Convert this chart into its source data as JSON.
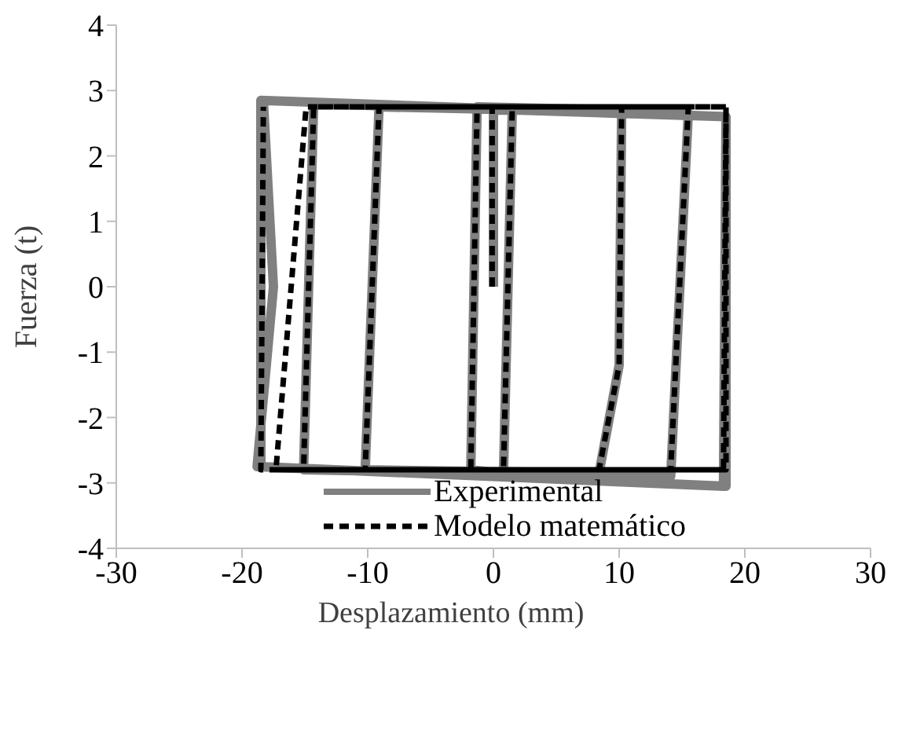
{
  "chart_data": {
    "type": "line",
    "xlabel": "Desplazamiento (mm)",
    "ylabel": "Fuerza (t)",
    "xlim": [
      -30,
      30
    ],
    "xticks": [
      -30,
      -20,
      -10,
      0,
      10,
      20,
      30
    ],
    "ylim": [
      -4,
      4
    ],
    "yticks": [
      -4,
      -3,
      -2,
      -1,
      0,
      1,
      2,
      3,
      4
    ],
    "grid": false,
    "legend": "bottom",
    "marker": "none",
    "series": [
      {
        "name": "Experimental",
        "color": "#808080",
        "line_style": "solid",
        "x": [
          0,
          0,
          1.5,
          0.8,
          -1.8,
          -1.3,
          10.2,
          10,
          8.4,
          -10.2,
          -9.1,
          15.5,
          14.1,
          -15.1,
          -14.3,
          18.5,
          18.5,
          -18.5,
          -18.5,
          18.5,
          18.3,
          -18.8,
          -17.5,
          -18.3
        ],
        "values": [
          0,
          2.7,
          2.7,
          -2.85,
          -2.8,
          2.75,
          2.7,
          -1.2,
          -2.85,
          -2.8,
          2.75,
          2.65,
          -2.9,
          -2.8,
          2.8,
          2.6,
          -3.05,
          -2.75,
          2.85,
          2.6,
          -3.05,
          -2.75,
          0,
          2.85
        ]
      },
      {
        "name": "Modelo matemático",
        "color": "#000000",
        "line_style": "dashed",
        "x": [
          -0.1,
          -0.1,
          1.5,
          0.8,
          -1.8,
          -1.3,
          10.2,
          10,
          8.4,
          -10.2,
          -9.1,
          15.5,
          14.1,
          -15.1,
          -14.3,
          18.5,
          18.5,
          -17.3,
          -14.9,
          18.5,
          18.3,
          -18.5,
          -18.3
        ],
        "values": [
          0,
          2.75,
          2.75,
          -2.8,
          -2.8,
          2.75,
          2.75,
          -1.2,
          -2.8,
          -2.8,
          2.75,
          2.75,
          -2.8,
          -2.8,
          2.75,
          2.75,
          -2.8,
          -2.8,
          2.75,
          2.75,
          -2.8,
          -2.8,
          2.75
        ]
      }
    ]
  }
}
